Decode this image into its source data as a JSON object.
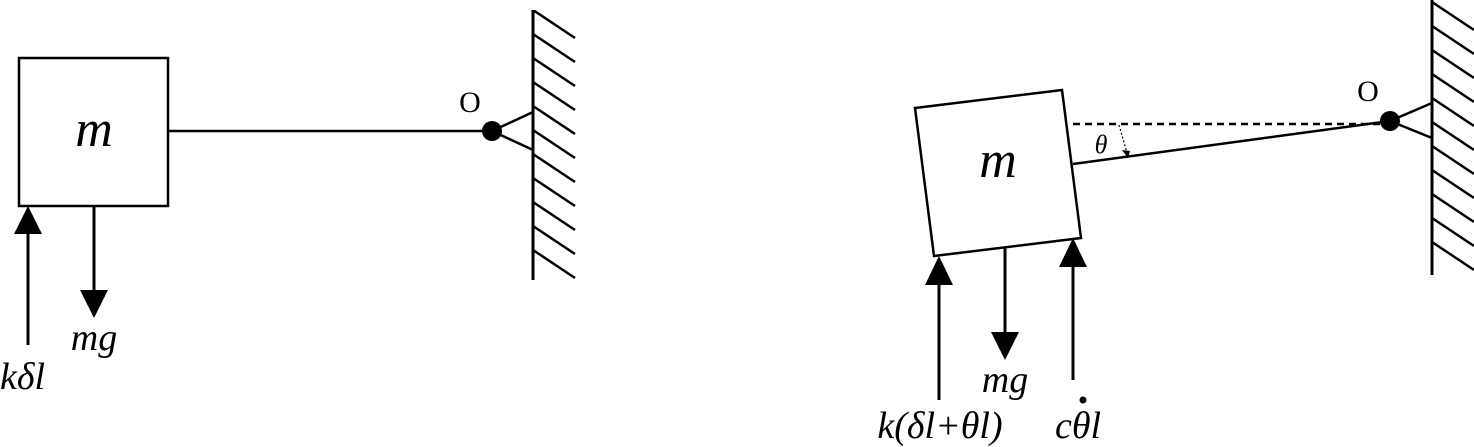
{
  "left_diagram": {
    "mass_label": "m",
    "pivot_label": "O",
    "forces": {
      "spring": "kδl",
      "weight": "mg"
    }
  },
  "right_diagram": {
    "mass_label": "m",
    "pivot_label": "O",
    "angle_label": "θ",
    "forces": {
      "spring": "k(δl+θl)",
      "weight": "mg",
      "damper_prefix": "c",
      "damper_dot_symbol": "θ",
      "damper_suffix": "l"
    }
  },
  "colors": {
    "ink": "#000000",
    "background": "#ffffff"
  }
}
